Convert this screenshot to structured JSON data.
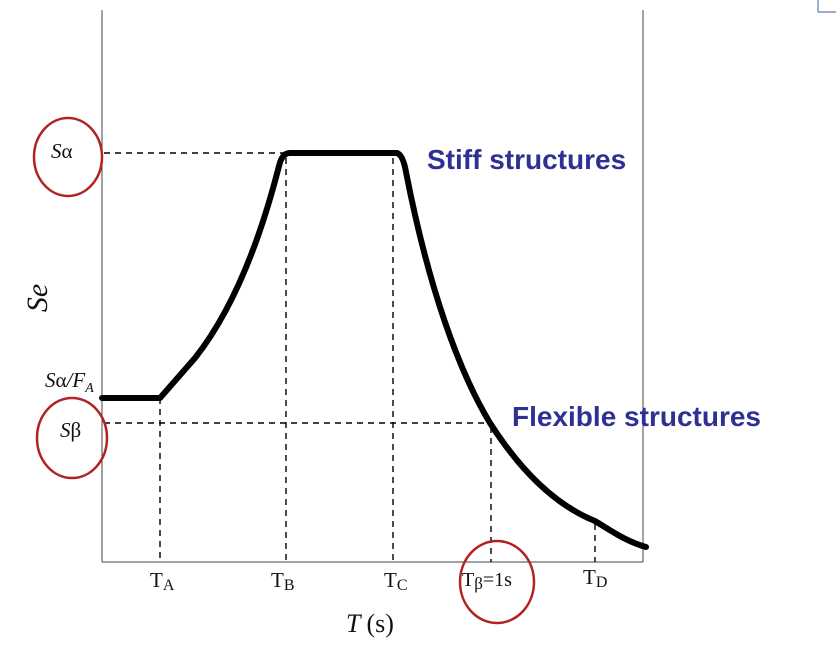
{
  "axes": {
    "y_label": "Se",
    "x_label_var": "T",
    "x_label_unit": "(s)"
  },
  "y_levels": {
    "s_alpha": {
      "base": "S",
      "sym": "α"
    },
    "s_alpha_over_fa": {
      "base": "S",
      "sym": "α",
      "div": "/F",
      "sub": "A"
    },
    "s_beta": {
      "base": "S",
      "sym": "β"
    }
  },
  "x_ticks": {
    "t_a": {
      "base": "T",
      "sub": "A"
    },
    "t_b": {
      "base": "T",
      "sub": "B"
    },
    "t_c": {
      "base": "T",
      "sub": "C"
    },
    "t_beta": {
      "base": "T",
      "sub": "β",
      "rest": "=1s"
    },
    "t_d": {
      "base": "T",
      "sub": "D"
    }
  },
  "annotations": {
    "stiff": "Stiff structures",
    "flexible": "Flexible structures"
  },
  "colors": {
    "annotation": "#2e3192",
    "highlight_circle": "#b22222",
    "curve": "#000000"
  }
}
